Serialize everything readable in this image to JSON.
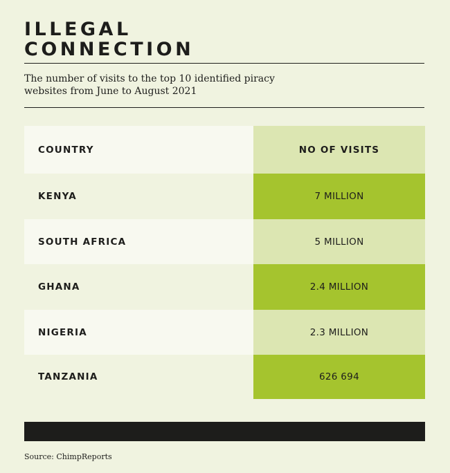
{
  "title_lines": [
    "ILLEGAL",
    "CONNECTION"
  ],
  "subtitle": "The number of visits to the top 10 identified piracy websites from June to August 2021",
  "source": "Source: ChimpReports",
  "colors": {
    "background": "#f0f3e0",
    "text": "#1d1d1b",
    "header_country_bg": "#f8f9f0",
    "header_visits_bg": "#dce6b2",
    "row_light_country_bg": "#f8f9f0",
    "row_dark_country_bg": "#f0f3e0",
    "row_dark_visits_bg": "#a5c42e",
    "row_light_visits_bg": "#dce6b2",
    "bottom_bar": "#1d1d1b"
  },
  "chart_data": {
    "type": "table",
    "columns": [
      "COUNTRY",
      "NO OF VISITS"
    ],
    "rows": [
      {
        "country": "KENYA",
        "visits_label": "7 MILLION",
        "visits": 7000000
      },
      {
        "country": "SOUTH AFRICA",
        "visits_label": "5 MILLION",
        "visits": 5000000
      },
      {
        "country": "GHANA",
        "visits_label": "2.4 MILLION",
        "visits": 2400000
      },
      {
        "country": "NIGERIA",
        "visits_label": "2.3 MILLION",
        "visits": 2300000
      },
      {
        "country": "TANZANIA",
        "visits_label": "626 694",
        "visits": 626694
      }
    ]
  }
}
